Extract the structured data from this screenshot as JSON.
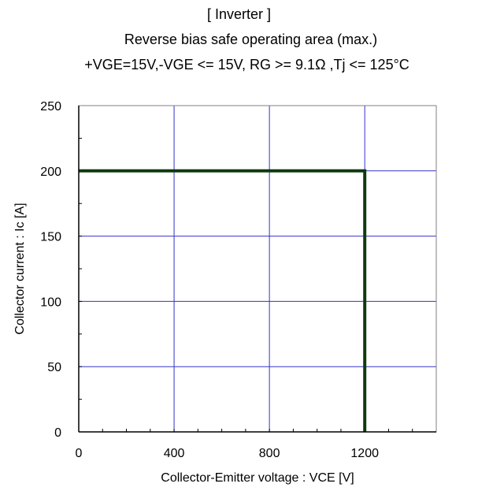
{
  "chart_data": {
    "type": "line",
    "title": "[ Inverter ]",
    "subtitle": "Reverse bias safe operating area (max.)",
    "conditions": "+VGE=15V,-VGE <= 15V, RG >= 9.1Ω ,Tj <= 125°C",
    "xlabel": "Collector-Emitter voltage : VCE [V]",
    "ylabel": "Collector current : Ic [A]",
    "xlim": [
      0,
      1500
    ],
    "ylim": [
      0,
      250
    ],
    "x_ticks": [
      0,
      400,
      800,
      1200
    ],
    "y_ticks": [
      0,
      50,
      100,
      150,
      200,
      250
    ],
    "grid": true,
    "colors": {
      "grid": "#3333cc",
      "series": "#0f3a0f",
      "axes": "#000000"
    },
    "series": [
      {
        "x": [
          0,
          1200,
          1200
        ],
        "y": [
          200,
          200,
          0
        ]
      }
    ]
  }
}
